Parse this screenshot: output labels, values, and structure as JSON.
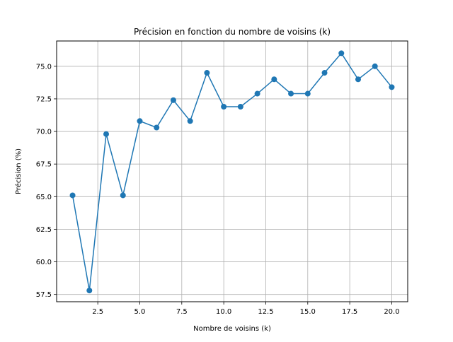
{
  "colors": {
    "line": "#1f77b4",
    "grid": "#b0b0b0",
    "axis": "#000000",
    "background": "#ffffff"
  },
  "chart_data": {
    "type": "line",
    "title": "Précision en fonction du nombre de voisins (k)",
    "xlabel": "Nombre de voisins (k)",
    "ylabel": "Précision (%)",
    "xlim": [
      0.05,
      20.95
    ],
    "ylim": [
      56.94,
      76.94
    ],
    "xticks": [
      2.5,
      5.0,
      7.5,
      10.0,
      12.5,
      15.0,
      17.5,
      20.0
    ],
    "xtick_labels": [
      "2.5",
      "5.0",
      "7.5",
      "10.0",
      "12.5",
      "15.0",
      "17.5",
      "20.0"
    ],
    "yticks": [
      57.5,
      60.0,
      62.5,
      65.0,
      67.5,
      70.0,
      72.5,
      75.0
    ],
    "ytick_labels": [
      "57.5",
      "60.0",
      "62.5",
      "65.0",
      "67.5",
      "70.0",
      "72.5",
      "75.0"
    ],
    "grid": true,
    "marker": "circle",
    "x": [
      1,
      2,
      3,
      4,
      5,
      6,
      7,
      8,
      9,
      10,
      11,
      12,
      13,
      14,
      15,
      16,
      17,
      18,
      19,
      20
    ],
    "values": [
      65.1,
      57.8,
      69.8,
      65.1,
      70.8,
      70.3,
      72.4,
      70.8,
      74.5,
      71.9,
      71.9,
      72.9,
      74.0,
      72.9,
      72.9,
      74.5,
      76.0,
      74.0,
      75.0,
      73.4
    ]
  }
}
